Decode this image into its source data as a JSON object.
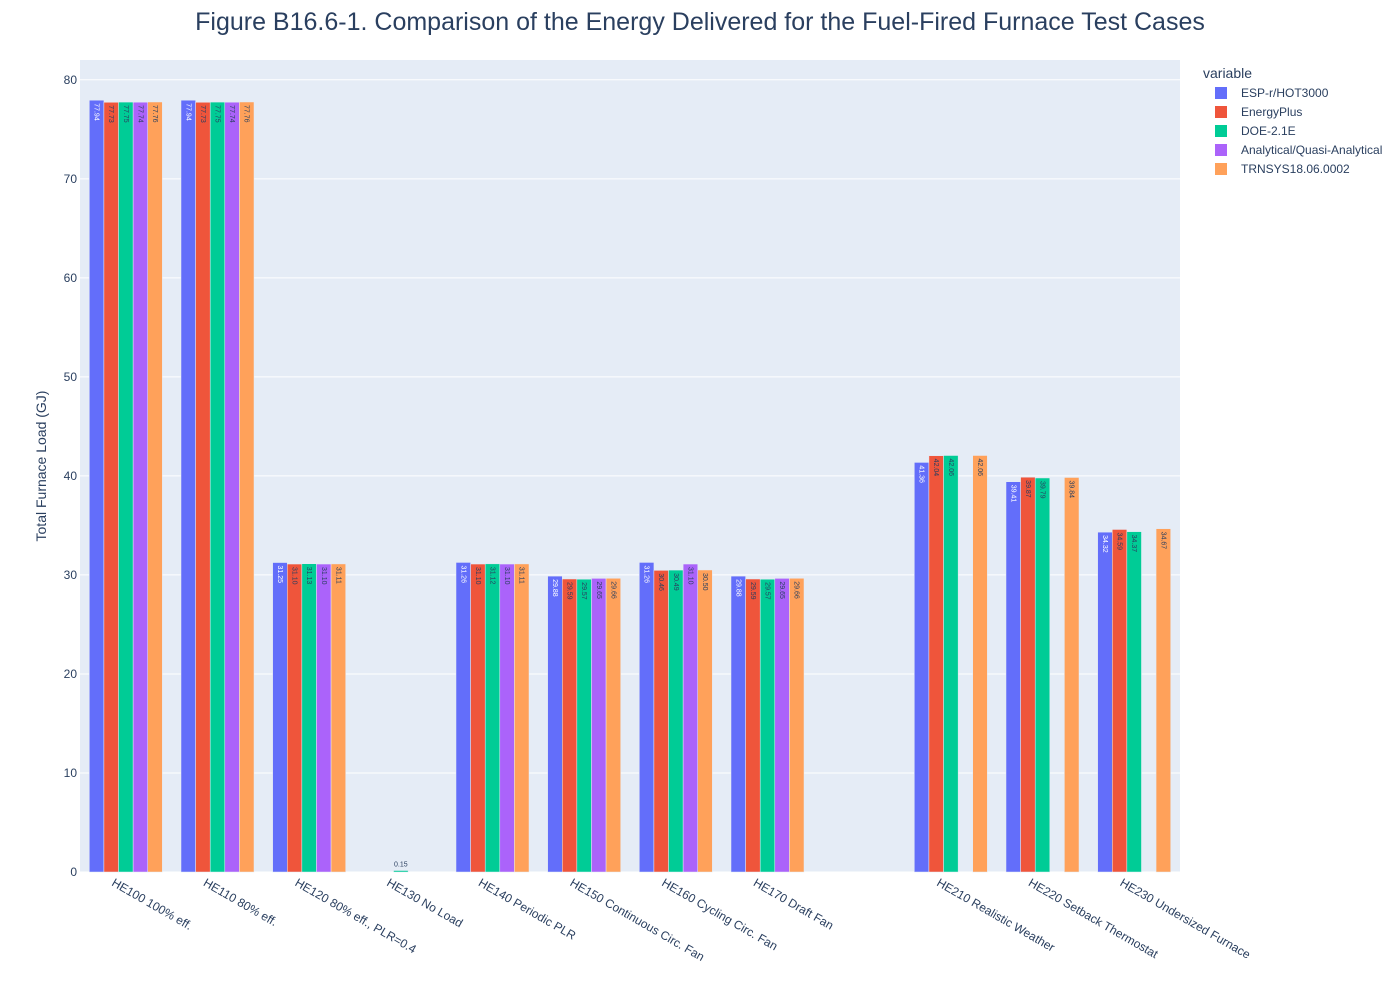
{
  "chart_data": {
    "type": "bar",
    "title": "Figure B16.6-1. Comparison of the Energy Delivered for the Fuel-Fired Furnace Test Cases",
    "ylabel": "Total Furnace Load (GJ)",
    "xlabel": "",
    "ylim": [
      0,
      82
    ],
    "yticks": [
      0,
      10,
      20,
      30,
      40,
      50,
      60,
      70,
      80
    ],
    "grid": true,
    "legend_title": "variable",
    "legend_position": "top-right, outside plot",
    "categories": [
      "HE100 100% eff.",
      "HE110 80% eff.",
      "HE120 80% eff., PLR=0.4",
      "HE130 No Load",
      "HE140 Periodic PLR",
      "HE150 Continuous Circ. Fan",
      "HE160 Cycling Circ. Fan",
      "HE170 Draft Fan",
      "",
      "HE210 Realistic Weather",
      "HE220 Setback Thermostat",
      "HE230 Undersized Furnace"
    ],
    "series": [
      {
        "name": "ESP-r/HOT3000",
        "color": "#636efa",
        "values": [
          77.94,
          77.94,
          31.25,
          null,
          31.26,
          29.88,
          31.26,
          29.88,
          null,
          41.36,
          39.41,
          34.32
        ]
      },
      {
        "name": "EnergyPlus",
        "color": "#ef553b",
        "values": [
          77.73,
          77.73,
          31.1,
          null,
          31.1,
          29.59,
          30.46,
          29.59,
          null,
          42.04,
          39.87,
          34.59
        ]
      },
      {
        "name": "DOE-2.1E",
        "color": "#00cc96",
        "values": [
          77.75,
          77.75,
          31.13,
          0.15,
          31.12,
          29.57,
          30.49,
          29.57,
          null,
          42.06,
          39.79,
          34.37
        ]
      },
      {
        "name": "Analytical/Quasi-Analytical",
        "color": "#ab63fa",
        "values": [
          77.74,
          77.74,
          31.1,
          null,
          31.1,
          29.65,
          31.1,
          29.65,
          null,
          null,
          null,
          null
        ]
      },
      {
        "name": "TRNSYS18.06.0002",
        "color": "#ffa15a",
        "values": [
          77.76,
          77.76,
          31.11,
          null,
          31.11,
          29.66,
          30.5,
          29.66,
          null,
          42.06,
          39.84,
          34.67
        ]
      }
    ],
    "colors": {
      "plot_background": "#e5ecf6",
      "grid": "#ffffff",
      "text": "#2a3f5f"
    }
  }
}
